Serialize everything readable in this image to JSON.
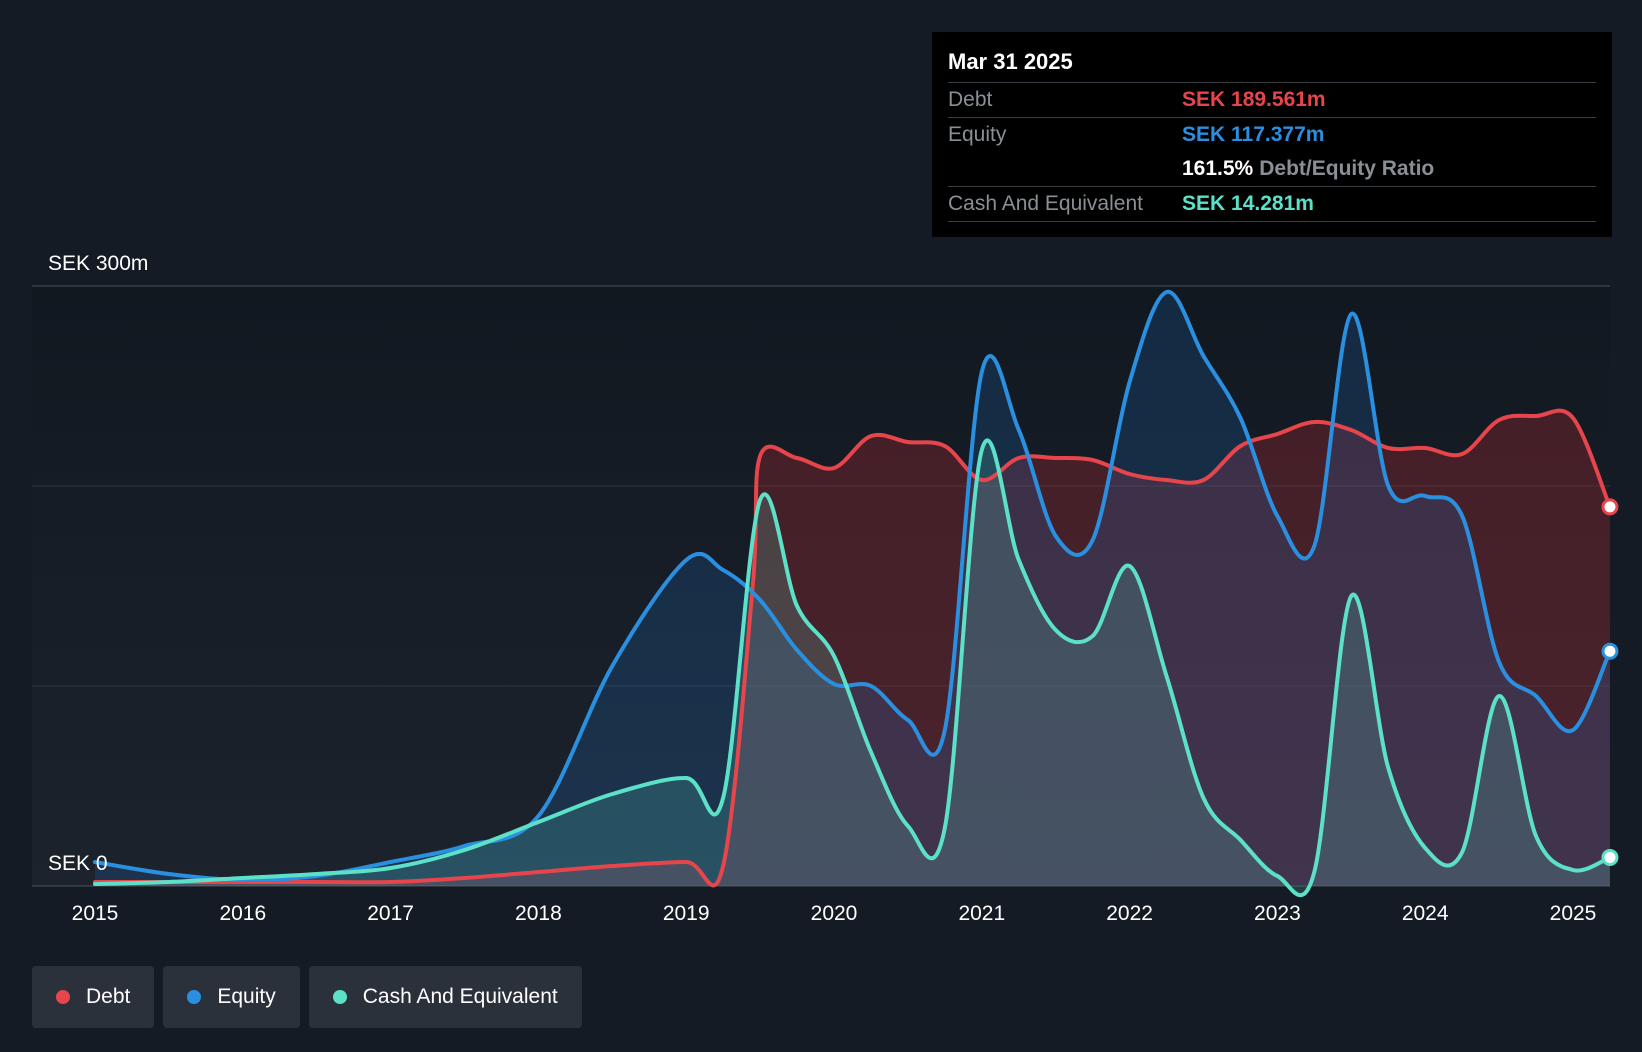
{
  "chart_data": {
    "type": "area",
    "y_top_label": "SEK 300m",
    "y_bottom_label": "SEK 0",
    "ylim": [
      0,
      300
    ],
    "x_tick_labels": [
      "2015",
      "2016",
      "2017",
      "2018",
      "2019",
      "2020",
      "2021",
      "2022",
      "2023",
      "2024",
      "2025"
    ],
    "xlim": [
      2015.0,
      2025.25
    ],
    "grid": true,
    "series": [
      {
        "name": "Debt",
        "color": "#e5454b",
        "x": [
          2015.0,
          2015.5,
          2016.0,
          2016.5,
          2017.0,
          2017.5,
          2018.0,
          2018.5,
          2019.0,
          2019.25,
          2019.45,
          2019.5,
          2019.75,
          2020.0,
          2020.25,
          2020.5,
          2020.75,
          2021.0,
          2021.25,
          2021.5,
          2021.75,
          2022.0,
          2022.25,
          2022.5,
          2022.75,
          2023.0,
          2023.25,
          2023.5,
          2023.75,
          2024.0,
          2024.25,
          2024.5,
          2024.75,
          2025.0,
          2025.25
        ],
        "values": [
          2,
          2,
          2,
          2,
          2,
          4,
          7,
          10,
          12,
          10,
          150,
          215,
          214,
          209,
          225,
          222,
          220,
          203,
          214,
          214,
          213,
          206,
          203,
          203,
          220,
          226,
          232,
          228,
          219,
          219,
          216,
          233,
          235,
          234,
          189.561
        ]
      },
      {
        "name": "Equity",
        "color": "#2b8fe0",
        "x": [
          2015.0,
          2015.5,
          2016.0,
          2016.5,
          2017.0,
          2017.5,
          2018.0,
          2018.5,
          2019.0,
          2019.25,
          2019.5,
          2019.75,
          2020.0,
          2020.25,
          2020.5,
          2020.75,
          2021.0,
          2021.25,
          2021.5,
          2021.75,
          2022.0,
          2022.25,
          2022.5,
          2022.75,
          2023.0,
          2023.25,
          2023.5,
          2023.75,
          2024.0,
          2024.25,
          2024.5,
          2024.75,
          2025.0,
          2025.25
        ],
        "values": [
          12,
          6,
          3,
          5,
          12,
          20,
          35,
          110,
          163,
          158,
          143,
          118,
          101,
          100,
          83,
          78,
          257,
          228,
          175,
          173,
          252,
          297,
          265,
          234,
          185,
          170,
          286,
          200,
          195,
          185,
          112,
          95,
          78,
          117.377
        ]
      },
      {
        "name": "Cash And Equivalent",
        "color": "#5ce0c8",
        "x": [
          2015.0,
          2015.5,
          2016.0,
          2016.5,
          2017.0,
          2017.5,
          2018.0,
          2018.5,
          2019.0,
          2019.25,
          2019.5,
          2019.75,
          2020.0,
          2020.25,
          2020.5,
          2020.75,
          2021.0,
          2021.25,
          2021.5,
          2021.75,
          2022.0,
          2022.25,
          2022.5,
          2022.75,
          2023.0,
          2023.25,
          2023.5,
          2023.75,
          2024.0,
          2024.25,
          2024.5,
          2024.75,
          2025.0,
          2025.25
        ],
        "values": [
          1,
          2,
          4,
          6,
          9,
          18,
          32,
          46,
          54,
          44,
          193,
          140,
          115,
          67,
          30,
          29,
          218,
          163,
          128,
          125,
          160,
          105,
          44,
          23,
          5,
          7,
          145,
          59,
          19,
          17,
          95,
          25,
          8,
          14.281
        ]
      }
    ]
  },
  "tooltip": {
    "date": "Mar 31 2025",
    "debt_label": "Debt",
    "debt_value": "SEK 189.561m",
    "equity_label": "Equity",
    "equity_value": "SEK 117.377m",
    "ratio_value": "161.5%",
    "ratio_label": "Debt/Equity Ratio",
    "cash_label": "Cash And Equivalent",
    "cash_value": "SEK 14.281m"
  },
  "legend": {
    "debt": "Debt",
    "equity": "Equity",
    "cash": "Cash And Equivalent"
  },
  "colors": {
    "background": "#151b24",
    "debt": "#e5454b",
    "equity": "#2b8fe0",
    "cash": "#5ce0c8"
  }
}
